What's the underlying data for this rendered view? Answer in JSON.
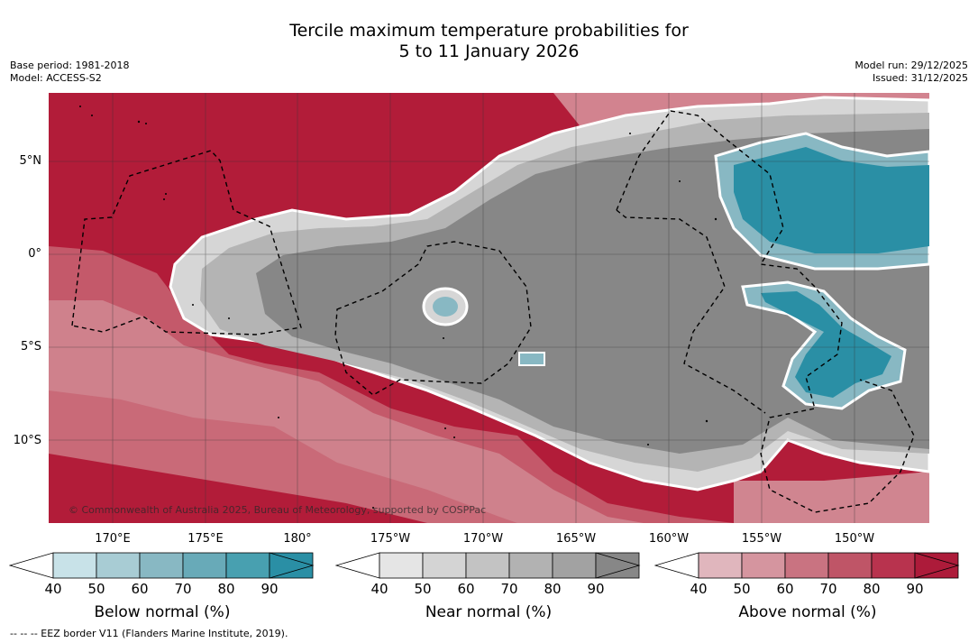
{
  "title_line1": "Tercile maximum temperature probabilities for",
  "title_line2": "5 to 11 January 2026",
  "base_period": "Base period: 1981-2018",
  "model": "Model: ACCESS-S2",
  "model_run": "Model run: 29/12/2025",
  "issued": "Issued: 31/12/2025",
  "lat_labels": [
    "5°N",
    "0°",
    "5°S",
    "10°S"
  ],
  "lon_labels": [
    "170°E",
    "175°E",
    "180°",
    "175°W",
    "170°W",
    "165°W",
    "160°W",
    "155°W",
    "150°W"
  ],
  "copyright": "© Commonwealth of Australia 2025, Bureau of Meteorology, supported by COSPPac",
  "colorbars": [
    {
      "title": "Below normal (%)",
      "ticks": [
        "40",
        "50",
        "60",
        "70",
        "80",
        "90"
      ],
      "colors": [
        "#c8e2e8",
        "#a8ccd4",
        "#88b8c3",
        "#68aab8",
        "#48a0b0",
        "#2a8fa5"
      ]
    },
    {
      "title": "Near normal (%)",
      "ticks": [
        "40",
        "50",
        "60",
        "70",
        "80",
        "90"
      ],
      "colors": [
        "#e5e5e5",
        "#d4d4d4",
        "#c3c3c3",
        "#b2b2b2",
        "#a2a2a2",
        "#878787"
      ]
    },
    {
      "title": "Above normal (%)",
      "ticks": [
        "40",
        "50",
        "60",
        "70",
        "80",
        "90"
      ],
      "colors": [
        "#e0b6bd",
        "#d5959f",
        "#c97381",
        "#bf5567",
        "#b8334e",
        "#ad1b3a"
      ]
    }
  ],
  "footnote": "--  --  -- EEZ border V11 (Flanders Marine Institute, 2019).",
  "colors": {
    "above_dark": "#b21c39",
    "near_dark": "#878787",
    "below_dark": "#2a8fa5"
  }
}
